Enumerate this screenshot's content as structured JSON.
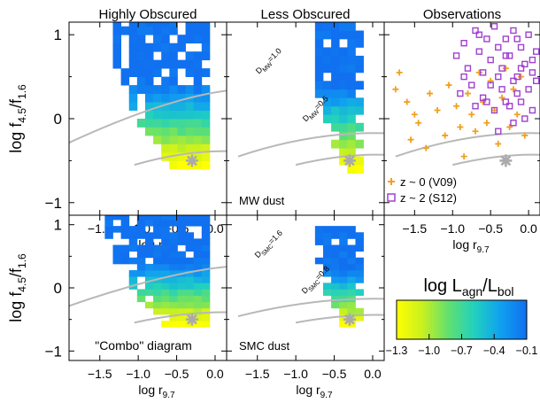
{
  "figure": {
    "ylabel_main": "log f",
    "ylabel_sub1": "4.5",
    "ylabel_slash": "/f",
    "ylabel_sub2": "1.6",
    "xlabel_main": "log r",
    "xlabel_sub": "9.7"
  },
  "chart_data": [
    {
      "type": "heatmap",
      "panel": "top-left",
      "title": "Highly Obscured",
      "xlim": [
        -1.9,
        0.15
      ],
      "ylim": [
        -1.15,
        1.15
      ],
      "xticks": [
        -1.5,
        -1.0,
        -0.5,
        0.0
      ],
      "yticks": [
        -1,
        0,
        1
      ],
      "curves": [
        {
          "x0": -2.05,
          "y0": -0.35,
          "xpeak": -0.3,
          "ypeak": 0.92,
          "x1": 0.6,
          "y1": 0.35
        },
        {
          "x0": -1.05,
          "y0": -0.55,
          "xpeak": -0.25,
          "ypeak": 0.22,
          "x1": 0.45,
          "y1": -0.4
        }
      ],
      "marker": {
        "x": -0.3,
        "y": -0.5,
        "symbol": "asterisk"
      },
      "density": {
        "x_min": -1.75,
        "x_max": -0.1,
        "y_min": -0.6,
        "y_max": 1.15,
        "center_x": -0.5,
        "center_y": 0.25,
        "value_top": -0.1,
        "value_bottom": -1.3
      }
    },
    {
      "type": "heatmap",
      "panel": "top-middle",
      "title": "Less Obscured",
      "xlim": [
        -1.9,
        0.15
      ],
      "ylim": [
        -1.15,
        1.15
      ],
      "annotation_left": "MW dust",
      "curves": [
        {
          "x0": -1.75,
          "y0": -0.45,
          "xpeak": -0.55,
          "ypeak": 0.98,
          "x1": 0.55,
          "y1": -0.2,
          "label": "D",
          "label_sub": "MW",
          "label_val": "=1.0"
        },
        {
          "x0": -1.0,
          "y0": -0.55,
          "xpeak": -0.2,
          "ypeak": 0.28,
          "x1": 0.45,
          "y1": -0.45,
          "label": "D",
          "label_sub": "MW",
          "label_val": "=0.5"
        }
      ],
      "marker": {
        "x": -0.3,
        "y": -0.5,
        "symbol": "asterisk"
      },
      "density": {
        "x_min": -0.75,
        "x_max": -0.1,
        "y_min": -0.65,
        "y_max": 1.15,
        "center_x": -0.45,
        "center_y": 0.4,
        "value_top": -0.1,
        "value_bottom": -1.3
      }
    },
    {
      "type": "scatter",
      "panel": "top-right",
      "title": "Observations",
      "xlim": [
        -1.9,
        0.15
      ],
      "ylim": [
        -1.15,
        1.15
      ],
      "xticks": [
        -1.5,
        -1.0,
        -0.5,
        0.0
      ],
      "curves": [
        {
          "x0": -1.75,
          "y0": -0.45,
          "xpeak": -0.55,
          "ypeak": 0.98,
          "x1": 0.55,
          "y1": -0.2
        },
        {
          "x0": -1.0,
          "y0": -0.55,
          "xpeak": -0.2,
          "ypeak": 0.28,
          "x1": 0.45,
          "y1": -0.45
        }
      ],
      "marker": {
        "x": -0.3,
        "y": -0.5,
        "symbol": "asterisk"
      },
      "series": [
        {
          "name": "z ~ 0 (V09)",
          "color": "#f0a020",
          "symbol": "plus",
          "points": [
            [
              -1.7,
              0.55
            ],
            [
              -1.75,
              0.35
            ],
            [
              -1.6,
              0.2
            ],
            [
              -1.5,
              0.05
            ],
            [
              -1.45,
              -0.05
            ],
            [
              -1.3,
              0.3
            ],
            [
              -1.2,
              0.1
            ],
            [
              -1.1,
              -0.2
            ],
            [
              -1.05,
              0.4
            ],
            [
              -0.95,
              0.15
            ],
            [
              -0.9,
              -0.1
            ],
            [
              -0.8,
              0.3
            ],
            [
              -0.75,
              0.05
            ],
            [
              -0.7,
              -0.15
            ],
            [
              -0.6,
              0.2
            ],
            [
              -0.55,
              -0.05
            ],
            [
              -0.5,
              0.45
            ],
            [
              -0.45,
              0.1
            ],
            [
              -0.4,
              -0.3
            ],
            [
              -0.35,
              0.25
            ],
            [
              -0.3,
              0.6
            ],
            [
              -0.25,
              -0.1
            ],
            [
              -0.2,
              0.35
            ],
            [
              -0.15,
              0.05
            ],
            [
              -0.1,
              0.5
            ],
            [
              -0.05,
              -0.2
            ],
            [
              -1.35,
              -0.35
            ],
            [
              -0.85,
              -0.45
            ],
            [
              -1.55,
              -0.25
            ],
            [
              -0.65,
              0.55
            ]
          ]
        },
        {
          "name": "z ~ 2 (S12)",
          "color": "#a040d0",
          "symbol": "square",
          "points": [
            [
              -0.95,
              0.75
            ],
            [
              -0.85,
              0.9
            ],
            [
              -0.8,
              0.6
            ],
            [
              -0.7,
              1.05
            ],
            [
              -0.65,
              0.8
            ],
            [
              -0.6,
              0.55
            ],
            [
              -0.55,
              0.95
            ],
            [
              -0.5,
              0.7
            ],
            [
              -0.45,
              1.1
            ],
            [
              -0.4,
              0.85
            ],
            [
              -0.35,
              0.6
            ],
            [
              -0.3,
              0.95
            ],
            [
              -0.25,
              0.75
            ],
            [
              -0.2,
              1.05
            ],
            [
              -0.15,
              0.5
            ],
            [
              -0.1,
              0.85
            ],
            [
              -0.05,
              0.65
            ],
            [
              0.0,
              1.0
            ],
            [
              0.05,
              0.7
            ],
            [
              0.1,
              0.45
            ],
            [
              -0.9,
              0.3
            ],
            [
              -0.75,
              0.4
            ],
            [
              -0.6,
              0.25
            ],
            [
              -0.5,
              0.4
            ],
            [
              -0.45,
              0.1
            ],
            [
              -0.35,
              0.35
            ],
            [
              -0.25,
              0.15
            ],
            [
              -0.2,
              0.45
            ],
            [
              -0.1,
              0.2
            ],
            [
              0.0,
              0.35
            ],
            [
              0.05,
              0.1
            ],
            [
              -0.55,
              0.2
            ],
            [
              -0.4,
              0.5
            ],
            [
              -0.3,
              0.2
            ],
            [
              -0.15,
              0.3
            ],
            [
              -0.05,
              0.0
            ],
            [
              0.1,
              0.8
            ],
            [
              -0.65,
              1.0
            ],
            [
              -0.15,
              0.95
            ],
            [
              -0.3,
              0.75
            ],
            [
              -0.7,
              0.15
            ],
            [
              -0.2,
              -0.05
            ],
            [
              -0.4,
              -0.15
            ],
            [
              0.05,
              0.55
            ],
            [
              -0.85,
              0.5
            ],
            [
              -0.1,
              0.6
            ]
          ]
        }
      ]
    },
    {
      "type": "heatmap",
      "panel": "bottom-left",
      "annotation": "\"Combo\" diagram",
      "xlim": [
        -1.9,
        0.15
      ],
      "ylim": [
        -1.15,
        1.15
      ],
      "xticks": [
        -1.5,
        -1.0,
        -0.5,
        0.0
      ],
      "yticks": [
        -1,
        0,
        1
      ],
      "curves": [
        {
          "x0": -2.05,
          "y0": -0.35,
          "xpeak": -0.3,
          "ypeak": 0.92,
          "x1": 0.6,
          "y1": 0.35
        },
        {
          "x0": -1.05,
          "y0": -0.55,
          "xpeak": -0.25,
          "ypeak": 0.22,
          "x1": 0.45,
          "y1": -0.4
        }
      ],
      "marker": {
        "x": -0.3,
        "y": -0.5,
        "symbol": "asterisk"
      },
      "density": {
        "x_min": -1.75,
        "x_max": -0.1,
        "y_min": -0.62,
        "y_max": 1.15,
        "center_x": -0.55,
        "center_y": 0.2,
        "value_top": -0.1,
        "value_bottom": -1.3
      }
    },
    {
      "type": "heatmap",
      "panel": "bottom-middle",
      "annotation_left": "SMC dust",
      "xlim": [
        -1.9,
        0.15
      ],
      "ylim": [
        -1.15,
        1.15
      ],
      "xticks": [
        -1.5,
        -1.0,
        -0.5,
        0.0
      ],
      "curves": [
        {
          "x0": -1.75,
          "y0": -0.45,
          "xpeak": -0.55,
          "ypeak": 0.98,
          "x1": 0.55,
          "y1": -0.2,
          "label": "D",
          "label_sub": "SMC",
          "label_val": "=1.6"
        },
        {
          "x0": -1.0,
          "y0": -0.55,
          "xpeak": -0.2,
          "ypeak": 0.28,
          "x1": 0.45,
          "y1": -0.45,
          "label": "D",
          "label_sub": "SMC",
          "label_val": "=0.8"
        }
      ],
      "marker": {
        "x": -0.3,
        "y": -0.5,
        "symbol": "asterisk"
      },
      "density": {
        "x_min": -0.75,
        "x_max": -0.1,
        "y_min": -0.62,
        "y_max": 0.95,
        "center_x": -0.45,
        "center_y": 0.35,
        "value_top": -0.1,
        "value_bottom": -1.3
      }
    }
  ],
  "colorbar": {
    "title": "log L",
    "title_sub1": "agn",
    "title_slash": "/L",
    "title_sub2": "bol",
    "range": [
      -1.3,
      -0.1
    ],
    "ticks": [
      "-1.3",
      "-1.0",
      "-0.7",
      "-0.4",
      "-0.1"
    ],
    "colors": [
      "#ffff00",
      "#c8f020",
      "#60e070",
      "#20d0c0",
      "#10a0f0",
      "#1070f0"
    ]
  }
}
